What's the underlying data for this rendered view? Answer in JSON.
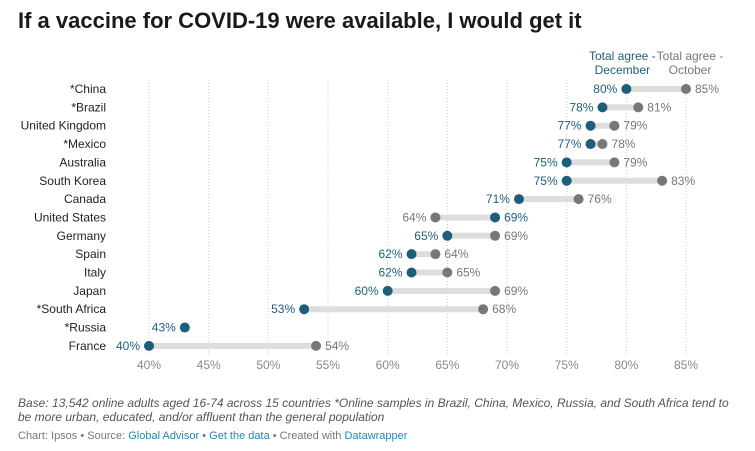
{
  "title": "If a vaccine for COVID-19 were available, I would get it",
  "chart_data": {
    "type": "dot-range",
    "series": [
      {
        "name": "Total agree - December",
        "color": "#1d5f7a"
      },
      {
        "name": "Total agree - October",
        "color": "#777777"
      }
    ],
    "xlim": [
      40,
      85
    ],
    "xticks": [
      "40%",
      "45%",
      "50%",
      "55%",
      "60%",
      "65%",
      "70%",
      "75%",
      "80%",
      "85%"
    ],
    "xtick_values": [
      40,
      45,
      50,
      55,
      60,
      65,
      70,
      75,
      80,
      85
    ],
    "rows": [
      {
        "country": "*China",
        "december": 80,
        "october": 85,
        "dec_label": "80%",
        "oct_label": "85%"
      },
      {
        "country": "*Brazil",
        "december": 78,
        "october": 81,
        "dec_label": "78%",
        "oct_label": "81%"
      },
      {
        "country": "United Kingdom",
        "december": 77,
        "october": 79,
        "dec_label": "77%",
        "oct_label": "79%"
      },
      {
        "country": "*Mexico",
        "december": 77,
        "october": 78,
        "dec_label": "77%",
        "oct_label": "78%"
      },
      {
        "country": "Australia",
        "december": 75,
        "october": 79,
        "dec_label": "75%",
        "oct_label": "79%"
      },
      {
        "country": "South Korea",
        "december": 75,
        "october": 83,
        "dec_label": "75%",
        "oct_label": "83%"
      },
      {
        "country": "Canada",
        "december": 71,
        "october": 76,
        "dec_label": "71%",
        "oct_label": "76%"
      },
      {
        "country": "United States",
        "december": 69,
        "october": 64,
        "dec_label": "69%",
        "oct_label": "64%"
      },
      {
        "country": "Germany",
        "december": 65,
        "october": 69,
        "dec_label": "65%",
        "oct_label": "69%"
      },
      {
        "country": "Spain",
        "december": 62,
        "october": 64,
        "dec_label": "62%",
        "oct_label": "64%"
      },
      {
        "country": "Italy",
        "december": 62,
        "october": 65,
        "dec_label": "62%",
        "oct_label": "65%"
      },
      {
        "country": "Japan",
        "december": 60,
        "october": 69,
        "dec_label": "60%",
        "oct_label": "69%"
      },
      {
        "country": "*South Africa",
        "december": 53,
        "october": 68,
        "dec_label": "53%",
        "oct_label": "68%"
      },
      {
        "country": "*Russia",
        "december": 43,
        "october": null,
        "dec_label": "43%",
        "oct_label": ""
      },
      {
        "country": "France",
        "december": 40,
        "october": 54,
        "dec_label": "40%",
        "oct_label": "54%"
      }
    ],
    "legend": {
      "december_line1": "Total agree -",
      "december_line2": "December",
      "october_line1": "Total agree -",
      "october_line2": "October"
    }
  },
  "footnote": "Base: 13,542 online adults aged 16-74 across 15 countries *Online samples in Brazil, China, Mexico, Russia, and South Africa tend to be more urban, educated, and/or affluent than the general population",
  "credits": {
    "chart_prefix": "Chart: Ipsos • Source: ",
    "source_link": "Global Advisor",
    "sep1": " • ",
    "data_link": "Get the data",
    "sep2": " • Created with ",
    "tool_link": "Datawrapper"
  }
}
